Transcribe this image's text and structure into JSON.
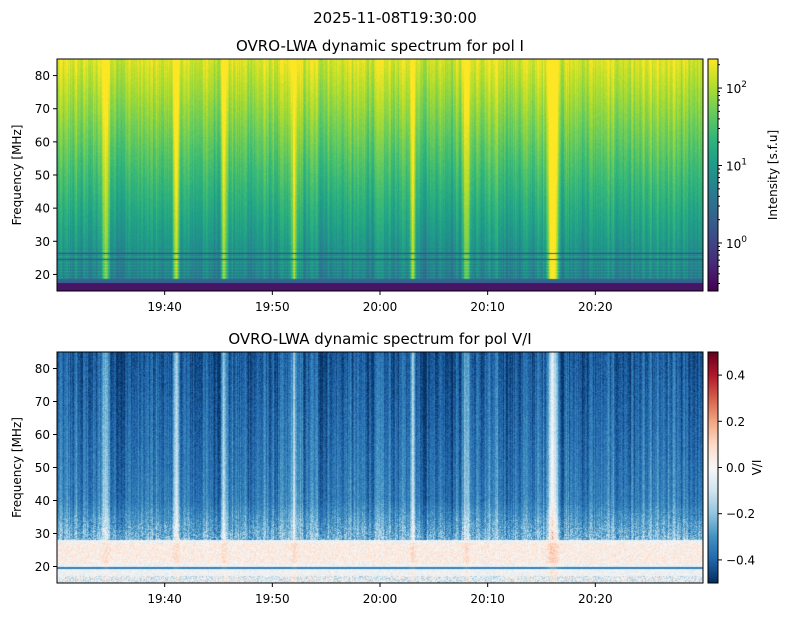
{
  "suptitle": "2025-11-08T19:30:00",
  "chart_data": [
    {
      "type": "heatmap",
      "title": "OVRO-LWA dynamic spectrum for pol I",
      "xlabel": "",
      "ylabel": "Frequency [MHz]",
      "xlim": [
        "19:30",
        "20:30"
      ],
      "ylim": [
        15,
        85
      ],
      "xticks": [
        "19:40",
        "19:50",
        "20:00",
        "20:10",
        "20:20"
      ],
      "yticks": [
        20,
        30,
        40,
        50,
        60,
        70,
        80
      ],
      "colormap": "viridis",
      "color_scale": "log",
      "clim": [
        0.24,
        237
      ],
      "colorbar": {
        "label": "Intensity [s.f.u]",
        "ticks": [
          {
            "value": 100,
            "base": "10",
            "exp": "2"
          },
          {
            "value": 10,
            "base": "10",
            "exp": "1"
          },
          {
            "value": 1,
            "base": "10",
            "exp": "0"
          }
        ]
      },
      "features": {
        "bright_bursts_time": [
          "19:34:30",
          "19:41:00",
          "19:45:30",
          "19:52:00",
          "20:03:00",
          "20:08:00",
          "20:16:00"
        ],
        "dark_lines_MHz": [
          24.5,
          26.3
        ],
        "low_band_cutoff_MHz": 18.5
      }
    },
    {
      "type": "heatmap",
      "title": "OVRO-LWA dynamic spectrum for pol V/I",
      "xlabel": "",
      "ylabel": "Frequency [MHz]",
      "xlim": [
        "19:30",
        "20:30"
      ],
      "ylim": [
        15,
        85
      ],
      "xticks": [
        "19:40",
        "19:50",
        "20:00",
        "20:10",
        "20:20"
      ],
      "yticks": [
        20,
        30,
        40,
        50,
        60,
        70,
        80
      ],
      "colormap": "RdBu_r",
      "color_scale": "linear",
      "clim": [
        -0.5,
        0.5
      ],
      "colorbar": {
        "label": "V/I",
        "ticks": [
          {
            "value": 0.4,
            "text": "0.4"
          },
          {
            "value": 0.2,
            "text": "0.2"
          },
          {
            "value": 0.0,
            "text": "0.0"
          },
          {
            "value": -0.2,
            "text": "−0.2"
          },
          {
            "value": -0.4,
            "text": "−0.4"
          }
        ]
      }
    }
  ]
}
